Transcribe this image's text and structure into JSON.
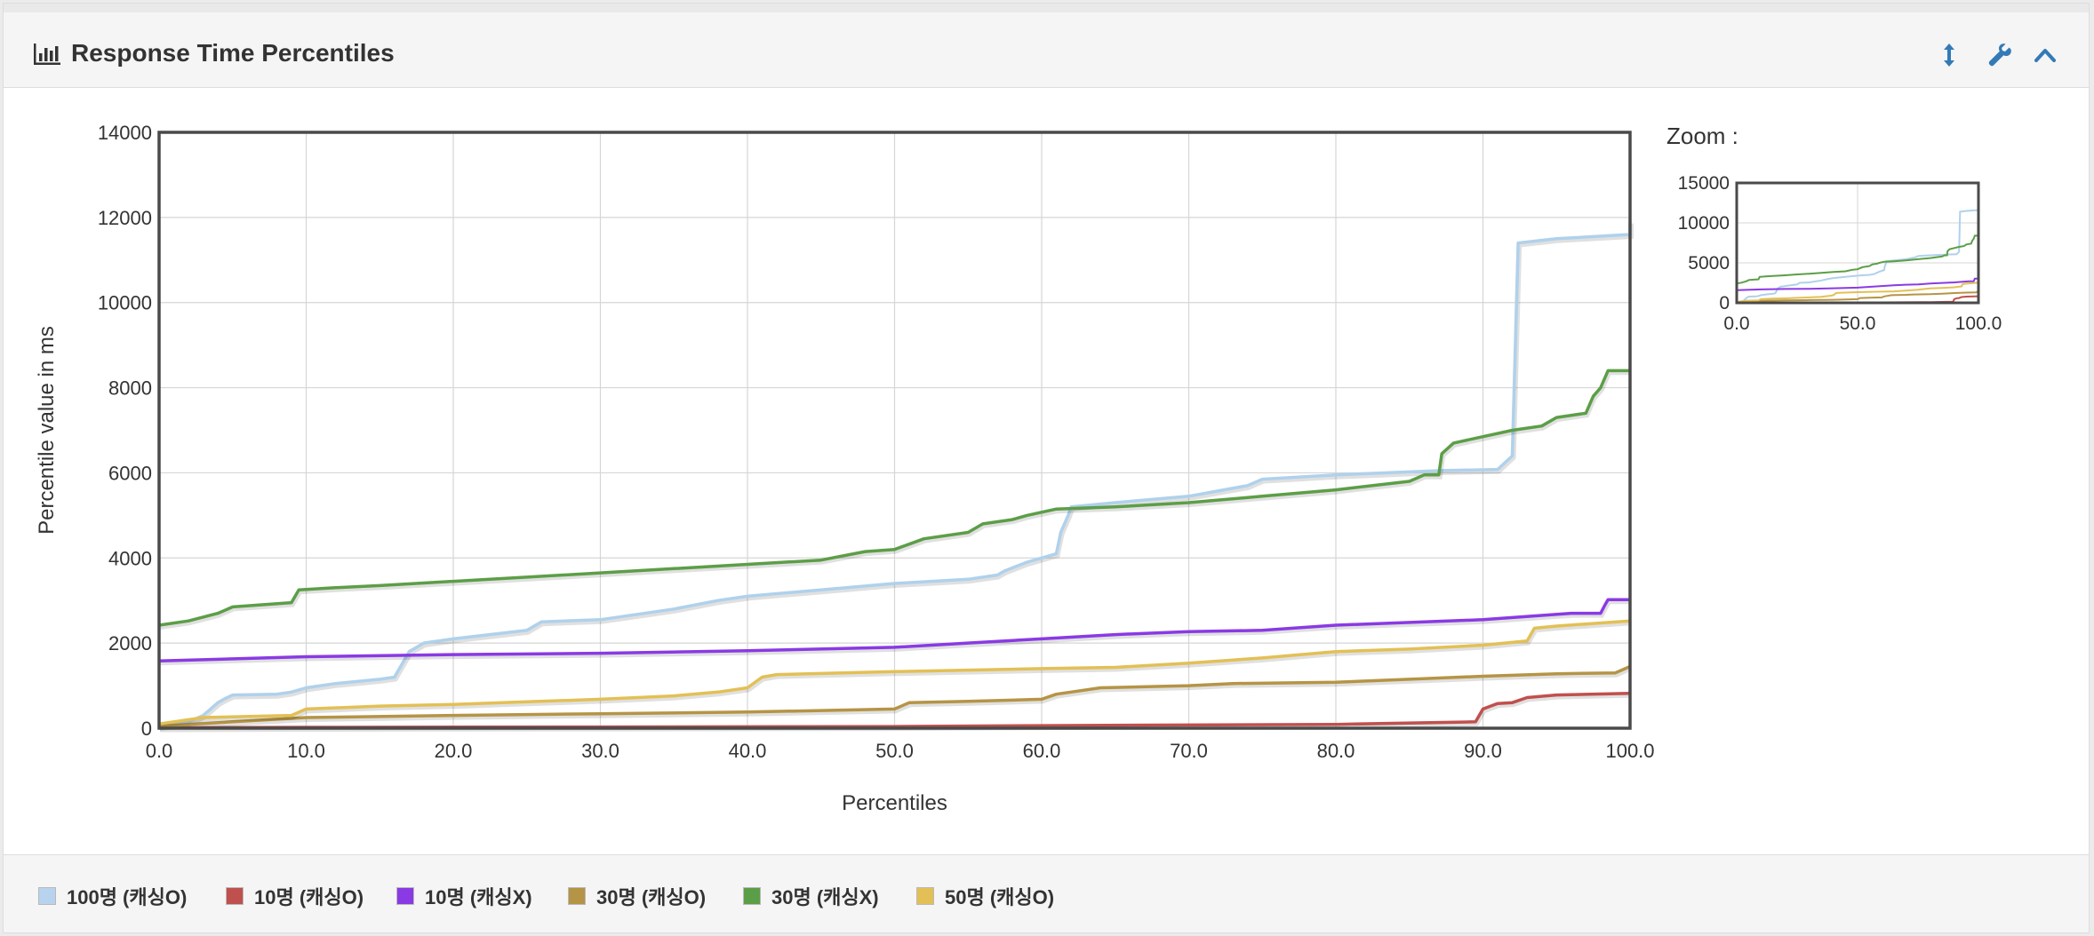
{
  "panel": {
    "title": "Response Time Percentiles"
  },
  "zoom_label": "Zoom :",
  "chart_data": {
    "type": "line",
    "title": "",
    "xlabel": "Percentiles",
    "ylabel": "Percentile value in ms",
    "xlim": [
      0,
      100
    ],
    "ylim": [
      0,
      14000
    ],
    "grid": true,
    "legend_position": "bottom",
    "x_ticks": [
      "0.0",
      "10.0",
      "20.0",
      "30.0",
      "40.0",
      "50.0",
      "60.0",
      "70.0",
      "80.0",
      "90.0",
      "100.0"
    ],
    "y_ticks": [
      "0",
      "2000",
      "4000",
      "6000",
      "8000",
      "10000",
      "12000",
      "14000"
    ],
    "series": [
      {
        "name": "100명 (캐싱O)",
        "color": "#afd1ec",
        "points": [
          [
            0,
            50
          ],
          [
            2,
            150
          ],
          [
            3,
            300
          ],
          [
            4,
            600
          ],
          [
            4.5,
            700
          ],
          [
            5,
            780
          ],
          [
            8,
            800
          ],
          [
            9,
            850
          ],
          [
            10,
            950
          ],
          [
            12,
            1050
          ],
          [
            15,
            1150
          ],
          [
            16,
            1200
          ],
          [
            16.5,
            1500
          ],
          [
            17,
            1800
          ],
          [
            18,
            2000
          ],
          [
            20,
            2100
          ],
          [
            25,
            2300
          ],
          [
            26,
            2500
          ],
          [
            30,
            2550
          ],
          [
            35,
            2800
          ],
          [
            38,
            3000
          ],
          [
            40,
            3100
          ],
          [
            45,
            3250
          ],
          [
            50,
            3400
          ],
          [
            55,
            3500
          ],
          [
            57,
            3600
          ],
          [
            57.5,
            3700
          ],
          [
            59,
            3900
          ],
          [
            60,
            4000
          ],
          [
            61,
            4100
          ],
          [
            61.3,
            4600
          ],
          [
            61.8,
            5000
          ],
          [
            62,
            5200
          ],
          [
            65,
            5300
          ],
          [
            70,
            5450
          ],
          [
            74,
            5700
          ],
          [
            75,
            5850
          ],
          [
            80,
            5950
          ],
          [
            87,
            6050
          ],
          [
            91,
            6080
          ],
          [
            92,
            6400
          ],
          [
            92.4,
            11400
          ],
          [
            95,
            11500
          ],
          [
            100,
            11600
          ],
          [
            100,
            11900
          ]
        ]
      },
      {
        "name": "10명 (캐싱O)",
        "color": "#c0504d",
        "points": [
          [
            0,
            10
          ],
          [
            10,
            20
          ],
          [
            30,
            30
          ],
          [
            50,
            40
          ],
          [
            60,
            60
          ],
          [
            80,
            90
          ],
          [
            89.5,
            150
          ],
          [
            90,
            450
          ],
          [
            91,
            580
          ],
          [
            92,
            600
          ],
          [
            93,
            720
          ],
          [
            95,
            780
          ],
          [
            100,
            820
          ]
        ]
      },
      {
        "name": "10명 (캐싱X)",
        "color": "#8a3ae4",
        "points": [
          [
            0,
            1580
          ],
          [
            10,
            1680
          ],
          [
            20,
            1730
          ],
          [
            30,
            1760
          ],
          [
            40,
            1820
          ],
          [
            50,
            1900
          ],
          [
            55,
            2000
          ],
          [
            60,
            2100
          ],
          [
            65,
            2200
          ],
          [
            70,
            2270
          ],
          [
            75,
            2300
          ],
          [
            80,
            2420
          ],
          [
            90,
            2550
          ],
          [
            96,
            2700
          ],
          [
            98,
            2700
          ],
          [
            98.3,
            2900
          ],
          [
            98.5,
            3020
          ],
          [
            100,
            3020
          ]
        ]
      },
      {
        "name": "30명 (캐싱O)",
        "color": "#b59445",
        "points": [
          [
            0,
            50
          ],
          [
            5,
            150
          ],
          [
            10,
            250
          ],
          [
            20,
            300
          ],
          [
            30,
            340
          ],
          [
            40,
            380
          ],
          [
            50,
            450
          ],
          [
            51,
            600
          ],
          [
            55,
            630
          ],
          [
            60,
            680
          ],
          [
            61,
            800
          ],
          [
            62,
            850
          ],
          [
            64,
            950
          ],
          [
            70,
            1000
          ],
          [
            73,
            1050
          ],
          [
            80,
            1080
          ],
          [
            85,
            1150
          ],
          [
            90,
            1220
          ],
          [
            95,
            1280
          ],
          [
            99,
            1300
          ],
          [
            100,
            1450
          ]
        ]
      },
      {
        "name": "30명 (캐싱X)",
        "color": "#5c9e47",
        "points": [
          [
            0,
            2420
          ],
          [
            2,
            2520
          ],
          [
            4,
            2700
          ],
          [
            5,
            2850
          ],
          [
            7,
            2900
          ],
          [
            9,
            2950
          ],
          [
            9.5,
            3250
          ],
          [
            12,
            3300
          ],
          [
            15,
            3350
          ],
          [
            20,
            3450
          ],
          [
            25,
            3550
          ],
          [
            30,
            3650
          ],
          [
            35,
            3750
          ],
          [
            40,
            3850
          ],
          [
            45,
            3950
          ],
          [
            48,
            4150
          ],
          [
            50,
            4200
          ],
          [
            52,
            4450
          ],
          [
            55,
            4600
          ],
          [
            56,
            4800
          ],
          [
            58,
            4900
          ],
          [
            59,
            5000
          ],
          [
            61,
            5150
          ],
          [
            65,
            5200
          ],
          [
            70,
            5300
          ],
          [
            75,
            5450
          ],
          [
            80,
            5600
          ],
          [
            85,
            5800
          ],
          [
            86,
            5950
          ],
          [
            87,
            5950
          ],
          [
            87.2,
            6450
          ],
          [
            88,
            6700
          ],
          [
            90,
            6850
          ],
          [
            92,
            7000
          ],
          [
            94,
            7100
          ],
          [
            95,
            7300
          ],
          [
            97,
            7400
          ],
          [
            97.5,
            7800
          ],
          [
            98,
            8000
          ],
          [
            98.5,
            8400
          ],
          [
            100,
            8400
          ]
        ]
      },
      {
        "name": "50명 (캐싱O)",
        "color": "#e3c055",
        "points": [
          [
            0,
            100
          ],
          [
            3,
            250
          ],
          [
            9,
            300
          ],
          [
            10,
            450
          ],
          [
            15,
            520
          ],
          [
            20,
            560
          ],
          [
            25,
            620
          ],
          [
            30,
            680
          ],
          [
            35,
            760
          ],
          [
            38,
            850
          ],
          [
            40,
            950
          ],
          [
            41,
            1200
          ],
          [
            42,
            1260
          ],
          [
            50,
            1330
          ],
          [
            60,
            1400
          ],
          [
            65,
            1430
          ],
          [
            70,
            1530
          ],
          [
            75,
            1650
          ],
          [
            80,
            1800
          ],
          [
            85,
            1860
          ],
          [
            90,
            1950
          ],
          [
            93,
            2050
          ],
          [
            93.5,
            2350
          ],
          [
            95,
            2400
          ],
          [
            100,
            2520
          ]
        ]
      }
    ]
  },
  "zoom_chart": {
    "xlim": [
      0,
      100
    ],
    "ylim": [
      0,
      15000
    ],
    "x_ticks": [
      "0.0",
      "50.0",
      "100.0"
    ],
    "y_ticks": [
      "0",
      "5000",
      "10000",
      "15000"
    ]
  },
  "legend": [
    {
      "label": "100명 (캐싱O)",
      "color": "#b7d3ee"
    },
    {
      "label": "10명 (캐싱O)",
      "color": "#c0504d"
    },
    {
      "label": "10명 (캐싱X)",
      "color": "#8a3ae4"
    },
    {
      "label": "30명 (캐싱O)",
      "color": "#b59445"
    },
    {
      "label": "30명 (캐싱X)",
      "color": "#5c9e47"
    },
    {
      "label": "50명 (캐싱O)",
      "color": "#e3c055"
    }
  ],
  "colors": {
    "accent": "#337ab7",
    "heading_bg": "#f5f5f5"
  }
}
